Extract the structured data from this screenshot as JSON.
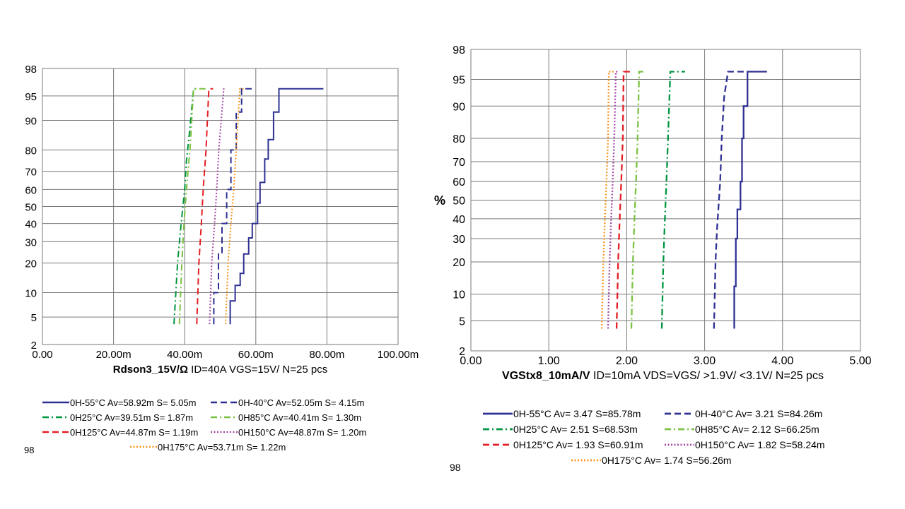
{
  "chart_data": [
    {
      "type": "line",
      "title": "",
      "xlabel_bold": "Rdson3_15V/Ω",
      "xlabel_rest": " ID=40A VGS=15V/ N=25 pcs",
      "ylabel": "",
      "x_scale": "linear",
      "y_scale": "normal-probability",
      "xlim": [
        0,
        0.1
      ],
      "ylim": [
        2,
        98
      ],
      "x_ticks": [
        "0.00",
        "20.00m",
        "40.00m",
        "60.00m",
        "80.00m",
        "100.00m"
      ],
      "y_ticks": [
        "2",
        "5",
        "10",
        "20",
        "30",
        "40",
        "50",
        "60",
        "70",
        "80",
        "90",
        "95",
        "98"
      ],
      "grid": true,
      "legend_position": "bottom",
      "footer_fragment": "98",
      "series": [
        {
          "name": "0H-55°C Av=58.92m S= 5.05m",
          "color": "#2e3192",
          "dash": "solid",
          "points": [
            [
              0.0528,
              4
            ],
            [
              0.0528,
              8
            ],
            [
              0.0542,
              8
            ],
            [
              0.0542,
              12
            ],
            [
              0.0556,
              12
            ],
            [
              0.0556,
              16
            ],
            [
              0.0566,
              16
            ],
            [
              0.0566,
              24
            ],
            [
              0.058,
              24
            ],
            [
              0.058,
              32
            ],
            [
              0.059,
              32
            ],
            [
              0.059,
              40
            ],
            [
              0.0605,
              40
            ],
            [
              0.0605,
              52
            ],
            [
              0.0612,
              52
            ],
            [
              0.0612,
              64
            ],
            [
              0.0625,
              64
            ],
            [
              0.0625,
              76
            ],
            [
              0.0635,
              76
            ],
            [
              0.0635,
              84
            ],
            [
              0.065,
              84
            ],
            [
              0.065,
              92
            ],
            [
              0.0665,
              92
            ],
            [
              0.0665,
              96
            ],
            [
              0.079,
              96
            ]
          ]
        },
        {
          "name": "0H-40°C Av=52.05m S= 4.15m",
          "color": "#2e3192",
          "dash": "dash",
          "points": [
            [
              0.0482,
              4
            ],
            [
              0.0482,
              10
            ],
            [
              0.0495,
              10
            ],
            [
              0.0495,
              24
            ],
            [
              0.0505,
              24
            ],
            [
              0.0505,
              40
            ],
            [
              0.0518,
              40
            ],
            [
              0.0518,
              60
            ],
            [
              0.053,
              60
            ],
            [
              0.053,
              80
            ],
            [
              0.0545,
              80
            ],
            [
              0.0545,
              92
            ],
            [
              0.056,
              92
            ],
            [
              0.056,
              96
            ],
            [
              0.059,
              96
            ]
          ]
        },
        {
          "name": "0H25°C Av=39.51m S= 1.87m",
          "color": "#00953f",
          "dash": "dashdot",
          "points": [
            [
              0.037,
              4
            ],
            [
              0.038,
              20
            ],
            [
              0.039,
              40
            ],
            [
              0.04,
              60
            ],
            [
              0.0405,
              75
            ],
            [
              0.0415,
              88
            ],
            [
              0.0425,
              96
            ],
            [
              0.0438,
              96
            ]
          ]
        },
        {
          "name": "0H85°C Av=40.41m S= 1.30m",
          "color": "#7cc242",
          "dash": "dashdot",
          "points": [
            [
              0.0385,
              4
            ],
            [
              0.0392,
              20
            ],
            [
              0.0398,
              40
            ],
            [
              0.0405,
              60
            ],
            [
              0.0415,
              80
            ],
            [
              0.0425,
              96
            ],
            [
              0.046,
              96
            ]
          ]
        },
        {
          "name": "0H125°C Av=44.87m S= 1.19m",
          "color": "#e31e24",
          "dash": "dash",
          "points": [
            [
              0.0434,
              4
            ],
            [
              0.044,
              20
            ],
            [
              0.0447,
              40
            ],
            [
              0.0452,
              60
            ],
            [
              0.046,
              80
            ],
            [
              0.0468,
              96
            ],
            [
              0.048,
              96
            ]
          ]
        },
        {
          "name": "0H150°C Av=48.87m S= 1.20m",
          "color": "#a349a4",
          "dash": "dot",
          "points": [
            [
              0.047,
              4
            ],
            [
              0.0476,
              20
            ],
            [
              0.0484,
              40
            ],
            [
              0.049,
              60
            ],
            [
              0.0496,
              80
            ],
            [
              0.051,
              96
            ],
            [
              0.0515,
              96
            ]
          ]
        },
        {
          "name": "0H175°C Av=53.71m S= 1.22m",
          "color": "#f7941d",
          "dash": "dot",
          "points": [
            [
              0.0515,
              4
            ],
            [
              0.0522,
              20
            ],
            [
              0.053,
              40
            ],
            [
              0.0538,
              60
            ],
            [
              0.0545,
              80
            ],
            [
              0.0555,
              96
            ],
            [
              0.057,
              96
            ]
          ]
        }
      ]
    },
    {
      "type": "line",
      "title": "",
      "xlabel_bold": "VGStx8_10mA/V",
      "xlabel_rest": " ID=10mA VDS=VGS/ >1.9V/ <3.1V/ N=25 pcs",
      "ylabel": "%",
      "x_scale": "linear",
      "y_scale": "normal-probability",
      "xlim": [
        0,
        5
      ],
      "ylim": [
        2,
        98
      ],
      "x_ticks": [
        "0.00",
        "1.00",
        "2.00",
        "3.00",
        "4.00",
        "5.00"
      ],
      "y_ticks": [
        "2",
        "5",
        "10",
        "20",
        "30",
        "40",
        "50",
        "60",
        "70",
        "80",
        "90",
        "95",
        "98"
      ],
      "grid": true,
      "legend_position": "bottom",
      "footer_fragment": "98",
      "series": [
        {
          "name": "0H-55°C Av= 3.47 S=85.78m",
          "color": "#2e3192",
          "dash": "solid",
          "points": [
            [
              3.38,
              4
            ],
            [
              3.38,
              12
            ],
            [
              3.4,
              12
            ],
            [
              3.4,
              30
            ],
            [
              3.42,
              30
            ],
            [
              3.42,
              45
            ],
            [
              3.46,
              45
            ],
            [
              3.46,
              60
            ],
            [
              3.48,
              60
            ],
            [
              3.48,
              80
            ],
            [
              3.5,
              80
            ],
            [
              3.5,
              90
            ],
            [
              3.55,
              90
            ],
            [
              3.55,
              96
            ],
            [
              3.8,
              96
            ]
          ]
        },
        {
          "name": "0H-40°C Av= 3.21 S=84.26m",
          "color": "#2e3192",
          "dash": "dash",
          "points": [
            [
              3.12,
              4
            ],
            [
              3.14,
              20
            ],
            [
              3.16,
              35
            ],
            [
              3.2,
              60
            ],
            [
              3.22,
              80
            ],
            [
              3.25,
              92
            ],
            [
              3.3,
              96
            ],
            [
              3.55,
              96
            ]
          ]
        },
        {
          "name": "0H25°C Av= 2.51 S=68.53m",
          "color": "#00953f",
          "dash": "dashdot",
          "points": [
            [
              2.45,
              4
            ],
            [
              2.47,
              20
            ],
            [
              2.49,
              40
            ],
            [
              2.51,
              60
            ],
            [
              2.53,
              80
            ],
            [
              2.56,
              96
            ],
            [
              2.75,
              96
            ]
          ]
        },
        {
          "name": "0H85°C Av= 2.12 S=66.25m",
          "color": "#7cc242",
          "dash": "dashdot",
          "points": [
            [
              2.06,
              4
            ],
            [
              2.08,
              20
            ],
            [
              2.1,
              40
            ],
            [
              2.12,
              60
            ],
            [
              2.14,
              80
            ],
            [
              2.16,
              96
            ],
            [
              2.25,
              96
            ]
          ]
        },
        {
          "name": "0H125°C Av= 1.93 S=60.91m",
          "color": "#e31e24",
          "dash": "dash",
          "points": [
            [
              1.87,
              4
            ],
            [
              1.89,
              20
            ],
            [
              1.91,
              40
            ],
            [
              1.93,
              60
            ],
            [
              1.95,
              80
            ],
            [
              1.96,
              96
            ],
            [
              2.05,
              96
            ]
          ]
        },
        {
          "name": "0H150°C Av= 1.82 S=58.24m",
          "color": "#a349a4",
          "dash": "dot",
          "points": [
            [
              1.76,
              4
            ],
            [
              1.78,
              20
            ],
            [
              1.8,
              40
            ],
            [
              1.82,
              60
            ],
            [
              1.84,
              80
            ],
            [
              1.86,
              96
            ],
            [
              1.9,
              96
            ]
          ]
        },
        {
          "name": "0H175°C Av= 1.74 S=56.26m",
          "color": "#f7941d",
          "dash": "dot",
          "points": [
            [
              1.68,
              4
            ],
            [
              1.7,
              20
            ],
            [
              1.72,
              40
            ],
            [
              1.74,
              60
            ],
            [
              1.76,
              80
            ],
            [
              1.77,
              96
            ],
            [
              1.85,
              96
            ]
          ]
        }
      ]
    }
  ]
}
